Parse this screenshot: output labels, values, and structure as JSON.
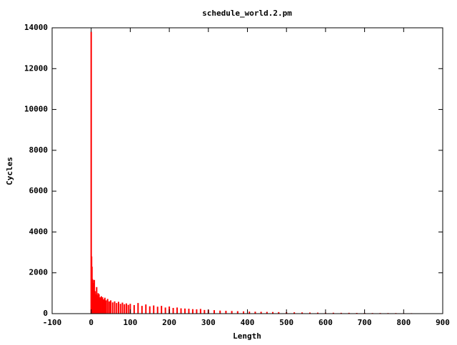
{
  "chart_data": {
    "type": "bar",
    "title": "schedule_world.2.pm",
    "x_label": "Length",
    "y_label": "Cycles",
    "color": "#ff0000",
    "x": [
      0,
      1,
      2,
      3,
      4,
      5,
      6,
      8,
      10,
      12,
      14,
      16,
      18,
      20,
      23,
      26,
      29,
      32,
      35,
      38,
      42,
      46,
      50,
      55,
      60,
      65,
      70,
      75,
      80,
      85,
      90,
      95,
      100,
      110,
      120,
      130,
      140,
      150,
      160,
      170,
      180,
      190,
      200,
      210,
      220,
      230,
      240,
      250,
      260,
      270,
      280,
      290,
      300,
      315,
      330,
      345,
      360,
      375,
      390,
      405,
      420,
      435,
      450,
      465,
      480,
      500,
      520,
      540,
      560,
      580,
      600,
      620,
      640,
      660,
      680,
      700,
      720,
      740,
      760,
      780,
      800,
      820
    ],
    "values": [
      13800,
      2800,
      2300,
      1700,
      1650,
      1500,
      1200,
      1650,
      1100,
      950,
      1300,
      900,
      1000,
      950,
      800,
      850,
      800,
      700,
      780,
      650,
      720,
      600,
      650,
      550,
      600,
      520,
      580,
      480,
      540,
      460,
      500,
      430,
      480,
      420,
      520,
      380,
      450,
      360,
      400,
      340,
      380,
      300,
      350,
      280,
      300,
      260,
      250,
      240,
      220,
      210,
      230,
      180,
      190,
      170,
      150,
      140,
      130,
      120,
      110,
      100,
      95,
      90,
      85,
      80,
      75,
      70,
      65,
      60,
      55,
      50,
      45,
      45,
      40,
      40,
      35,
      35,
      30,
      30,
      28,
      28,
      25,
      22
    ],
    "xlim": [
      -100,
      900
    ],
    "xticks": [
      -100,
      0,
      100,
      200,
      300,
      400,
      500,
      600,
      700,
      800,
      900
    ],
    "ylim": [
      0,
      14000
    ],
    "yticks": [
      0,
      2000,
      4000,
      6000,
      8000,
      10000,
      12000,
      14000
    ]
  }
}
